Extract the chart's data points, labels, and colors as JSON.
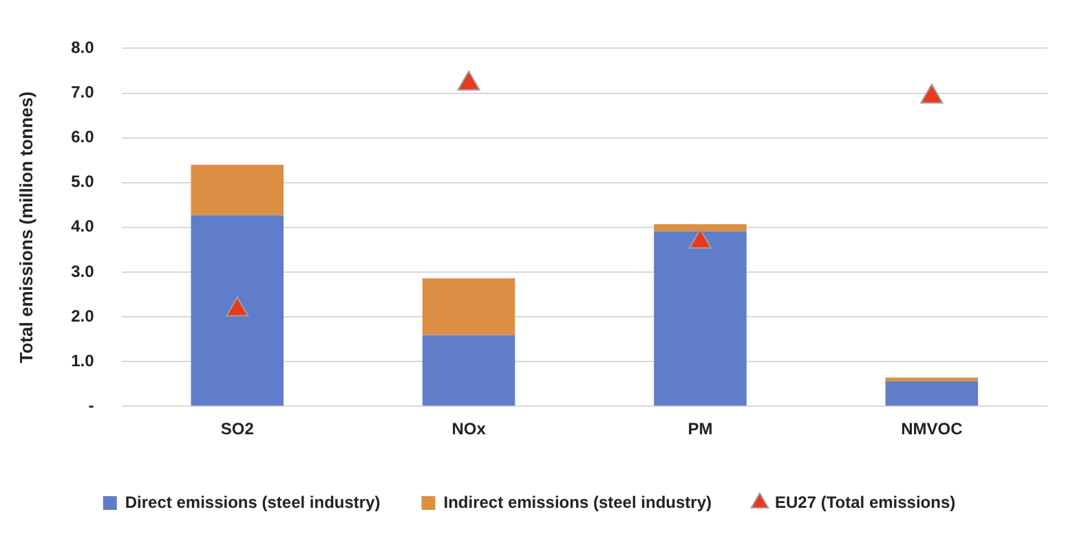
{
  "chart_data": {
    "type": "bar",
    "ylabel": "Total emissions (million tonnes)",
    "categories": [
      "SO2",
      "NOx",
      "PM",
      "NMVOC"
    ],
    "series": [
      {
        "name": "Direct emissions (steel industry)",
        "color": "#5f7dc9",
        "values": [
          4.27,
          1.59,
          3.91,
          0.56
        ]
      },
      {
        "name": "Indirect emissions (steel industry)",
        "color": "#dc8f42",
        "values": [
          1.13,
          1.27,
          0.16,
          0.08
        ]
      },
      {
        "name": "EU27 (Total emissions)",
        "type": "scatter",
        "marker": "triangle",
        "color": "#e8391f",
        "values": [
          2.16,
          7.21,
          3.68,
          6.92
        ]
      }
    ],
    "stacked": true,
    "ylim": [
      0,
      8
    ],
    "yticks": [
      {
        "value": 0,
        "label": "-"
      },
      {
        "value": 1,
        "label": "1.0"
      },
      {
        "value": 2,
        "label": "2.0"
      },
      {
        "value": 3,
        "label": "3.0"
      },
      {
        "value": 4,
        "label": "4.0"
      },
      {
        "value": 5,
        "label": "5.0"
      },
      {
        "value": 6,
        "label": "6.0"
      },
      {
        "value": 7,
        "label": "7.0"
      },
      {
        "value": 8,
        "label": "8.0"
      }
    ],
    "grid": "y",
    "legend": "bottom"
  }
}
